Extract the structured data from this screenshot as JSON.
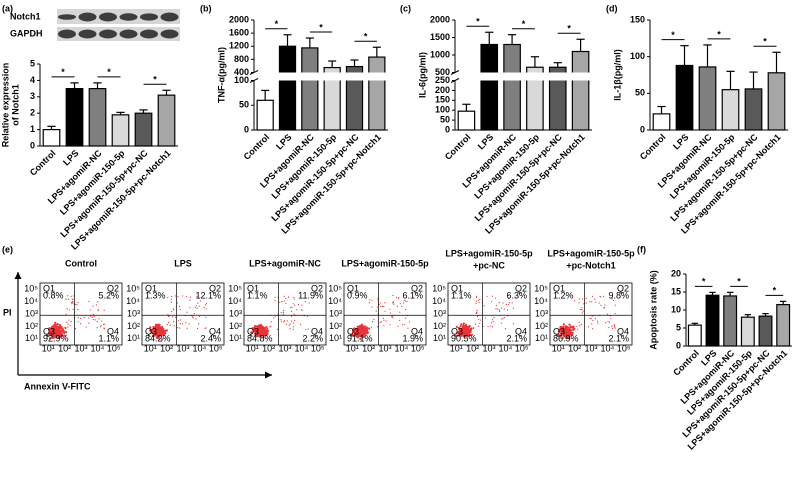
{
  "chart_data": [
    {
      "type": "bar",
      "panel": "(a)",
      "blot_labels": [
        "Notch1",
        "GAPDH"
      ],
      "ylabel": [
        "Relative expression",
        "of Notch1"
      ],
      "categories": [
        "Control",
        "LPS",
        "LPS+agomiR-NC",
        "LPS+agomiR-150-5p",
        "LPS+agomiR-150-5p+pc-NC",
        "LPS+agomiR-150-5p+pc-Notch1"
      ],
      "values": [
        1.0,
        3.5,
        3.5,
        1.9,
        2.0,
        3.1
      ],
      "errors": [
        0.2,
        0.35,
        0.35,
        0.15,
        0.2,
        0.3
      ],
      "colors": [
        "#ffffff",
        "#000000",
        "#7f7f7f",
        "#d9d9d9",
        "#595959",
        "#a6a6a6"
      ],
      "ylim": [
        0,
        5
      ],
      "yticks": [
        0,
        1,
        2,
        3,
        4,
        5
      ],
      "significance": [
        {
          "pair": [
            0,
            1
          ],
          "label": "*"
        },
        {
          "pair": [
            2,
            3
          ],
          "label": "*"
        },
        {
          "pair": [
            4,
            5
          ],
          "label": "*"
        }
      ]
    },
    {
      "type": "bar",
      "panel": "(b)",
      "ylabel": [
        "TNF-α(pg/ml)"
      ],
      "categories": [
        "Control",
        "LPS",
        "LPS+agomiR-NC",
        "LPS+agomiR-150-5p",
        "LPS+agomiR-150-5p+pc-NC",
        "LPS+agomiR-150-5p+pc-Notch1"
      ],
      "values": [
        60,
        1200,
        1150,
        550,
        580,
        870
      ],
      "errors": [
        20,
        350,
        300,
        200,
        200,
        300
      ],
      "colors": [
        "#ffffff",
        "#000000",
        "#7f7f7f",
        "#d9d9d9",
        "#595959",
        "#a6a6a6"
      ],
      "ylim": [
        0,
        2000
      ],
      "axis_break": [
        100,
        400
      ],
      "yticks": [
        0,
        50,
        100,
        400,
        800,
        1200,
        1600,
        2000
      ],
      "significance": [
        {
          "pair": [
            0,
            1
          ],
          "label": "*"
        },
        {
          "pair": [
            2,
            3
          ],
          "label": "*"
        },
        {
          "pair": [
            4,
            5
          ],
          "label": "*"
        }
      ]
    },
    {
      "type": "bar",
      "panel": "(c)",
      "ylabel": [
        "IL-6(pg/ml)"
      ],
      "categories": [
        "Control",
        "LPS",
        "LPS+agomiR-NC",
        "LPS+agomiR-150-5p",
        "LPS+agomiR-150-5p+pc-NC",
        "LPS+agomiR-150-5p+pc-Notch1"
      ],
      "values": [
        95,
        1300,
        1300,
        650,
        650,
        1100
      ],
      "errors": [
        35,
        350,
        280,
        300,
        130,
        350
      ],
      "colors": [
        "#ffffff",
        "#000000",
        "#7f7f7f",
        "#d9d9d9",
        "#595959",
        "#a6a6a6"
      ],
      "ylim": [
        0,
        2000
      ],
      "axis_break": [
        250,
        500
      ],
      "yticks": [
        0,
        50,
        100,
        150,
        200,
        250,
        500,
        1000,
        1500,
        2000
      ],
      "significance": [
        {
          "pair": [
            0,
            1
          ],
          "label": "*"
        },
        {
          "pair": [
            2,
            3
          ],
          "label": "*"
        },
        {
          "pair": [
            4,
            5
          ],
          "label": "*"
        }
      ]
    },
    {
      "type": "bar",
      "panel": "(d)",
      "ylabel": [
        "IL-1β(pg/ml)"
      ],
      "categories": [
        "Control",
        "LPS",
        "LPS+agomiR-NC",
        "LPS+agomiR-150-5p",
        "LPS+agomiR-150-5p+pc-NC",
        "LPS+agomiR-150-5p+pc-Notch1"
      ],
      "values": [
        22,
        88,
        86,
        55,
        56,
        78
      ],
      "errors": [
        10,
        27,
        30,
        25,
        23,
        28
      ],
      "colors": [
        "#ffffff",
        "#000000",
        "#7f7f7f",
        "#d9d9d9",
        "#595959",
        "#a6a6a6"
      ],
      "ylim": [
        0,
        150
      ],
      "yticks": [
        0,
        50,
        100,
        150
      ],
      "significance": [
        {
          "pair": [
            0,
            1
          ],
          "label": "*"
        },
        {
          "pair": [
            2,
            3
          ],
          "label": "*"
        },
        {
          "pair": [
            4,
            5
          ],
          "label": "*"
        }
      ]
    },
    {
      "type": "flow",
      "panel": "(e)",
      "ylabel": "PI",
      "xlabel": "Annexin V-FITC",
      "tick_labels": [
        "10¹",
        "10²",
        "10³",
        "10⁴",
        "10⁵"
      ],
      "quadrant_names": [
        "Q1",
        "Q2",
        "Q3",
        "Q4"
      ],
      "color": "#e8343a",
      "plots": [
        {
          "title": [
            "Control"
          ],
          "quadrants": [
            "0.8%",
            "5.2%",
            "92.9%",
            "1.1%"
          ]
        },
        {
          "title": [
            "LPS"
          ],
          "quadrants": [
            "1.3%",
            "12.1%",
            "84.2%",
            "2.4%"
          ]
        },
        {
          "title": [
            "LPS+agomiR-NC"
          ],
          "quadrants": [
            "1.1%",
            "11.9%",
            "84.8%",
            "2.2%"
          ]
        },
        {
          "title": [
            "LPS+agomiR-150-5p"
          ],
          "quadrants": [
            "0.9%",
            "6.1%",
            "91.1%",
            "1.9%"
          ]
        },
        {
          "title": [
            "LPS+agomiR-150-5p",
            "+pc-NC"
          ],
          "quadrants": [
            "1.1%",
            "6.3%",
            "90.5%",
            "2.1%"
          ]
        },
        {
          "title": [
            "LPS+agomiR-150-5p",
            "+pc-Notch1"
          ],
          "quadrants": [
            "1.2%",
            "9.8%",
            "86.9%",
            "2.1%"
          ]
        }
      ]
    },
    {
      "type": "bar",
      "panel": "(f)",
      "ylabel": [
        "Apoptosis rate (%)"
      ],
      "categories": [
        "Control",
        "LPS",
        "LPS+agomiR-NC",
        "LPS+agomiR-150-5p",
        "LPS+agomiR-150-5p+pc-NC",
        "LPS+agomiR-150-5p+pc-Notch1"
      ],
      "values": [
        5.8,
        14.1,
        13.9,
        8.0,
        8.3,
        11.5
      ],
      "errors": [
        0.5,
        0.8,
        1.0,
        0.7,
        0.7,
        0.9
      ],
      "colors": [
        "#ffffff",
        "#000000",
        "#7f7f7f",
        "#d9d9d9",
        "#595959",
        "#a6a6a6"
      ],
      "ylim": [
        0,
        20
      ],
      "yticks": [
        0,
        5,
        10,
        15,
        20
      ],
      "significance": [
        {
          "pair": [
            0,
            1
          ],
          "label": "*"
        },
        {
          "pair": [
            2,
            3
          ],
          "label": "*"
        },
        {
          "pair": [
            4,
            5
          ],
          "label": "*"
        }
      ]
    }
  ]
}
